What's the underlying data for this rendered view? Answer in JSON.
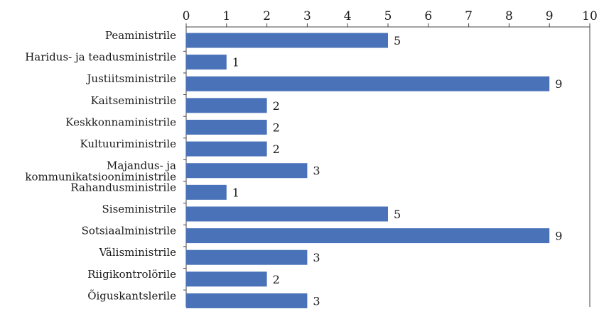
{
  "chart_data": {
    "type": "bar",
    "orientation": "horizontal",
    "categories": [
      "Peaministrile",
      "Haridus- ja teadusministrile",
      "Justiitsministrile",
      "Kaitseministrile",
      "Keskkonnaministrile",
      "Kultuuriministrile",
      [
        "Majandus- ja",
        "kommunikatsiooniministrile"
      ],
      "Rahandusministrile",
      "Siseministrile",
      "Sotsiaalministrile",
      "Välisministrile",
      "Riigikontrolörile",
      "Õiguskantslerile"
    ],
    "values": [
      5,
      1,
      9,
      2,
      2,
      2,
      3,
      1,
      5,
      9,
      3,
      2,
      3
    ],
    "xlim": [
      0,
      10
    ],
    "xticks": [
      0,
      1,
      2,
      3,
      4,
      5,
      6,
      7,
      8,
      9,
      10
    ],
    "xaxis_position": "top",
    "grid": false,
    "legend": "none",
    "data_labels": true,
    "colors": {
      "bar": "#4a72b8"
    }
  }
}
